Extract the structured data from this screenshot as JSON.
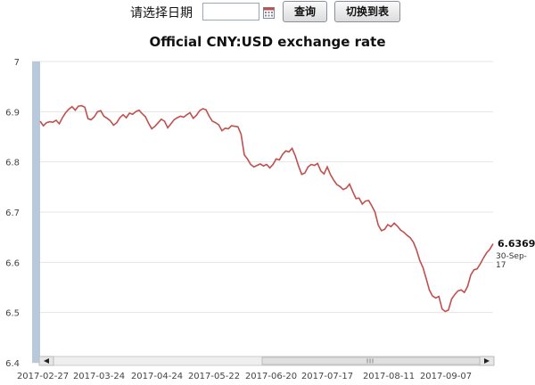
{
  "toolbar": {
    "date_label": "请选择日期",
    "date_value": "",
    "query_label": "查询",
    "switch_label": "切换到表",
    "calendar_icon": "calendar-icon"
  },
  "chart_data": {
    "type": "line",
    "title": "Official CNY:USD exchange rate",
    "xlabel": "",
    "ylabel": "",
    "ylim": [
      6.4,
      7.0
    ],
    "yticks": [
      "7",
      "6.9",
      "6.8",
      "6.7",
      "6.6",
      "6.5",
      "6.4"
    ],
    "xticks": [
      "2017-02-27",
      "2017-03-24",
      "2017-04-24",
      "2017-05-22",
      "2017-06-20",
      "2017-07-17",
      "2017-08-11",
      "2017-09-07"
    ],
    "grid": true,
    "line_color": "#c0504d",
    "series": [
      {
        "values": [
          6.881,
          6.872,
          6.878,
          6.88,
          6.879,
          6.883,
          6.876,
          6.888,
          6.898,
          6.905,
          6.91,
          6.903,
          6.911,
          6.912,
          6.909,
          6.886,
          6.884,
          6.89,
          6.9,
          6.902,
          6.891,
          6.887,
          6.882,
          6.873,
          6.878,
          6.888,
          6.894,
          6.888,
          6.897,
          6.895,
          6.9,
          6.903,
          6.896,
          6.89,
          6.877,
          6.866,
          6.871,
          6.878,
          6.885,
          6.881,
          6.868,
          6.876,
          6.884,
          6.888,
          6.891,
          6.889,
          6.894,
          6.898,
          6.887,
          6.893,
          6.902,
          6.906,
          6.904,
          6.891,
          6.881,
          6.878,
          6.874,
          6.862,
          6.867,
          6.866,
          6.872,
          6.871,
          6.87,
          6.855,
          6.814,
          6.806,
          6.795,
          6.79,
          6.793,
          6.796,
          6.792,
          6.795,
          6.788,
          6.795,
          6.806,
          6.804,
          6.815,
          6.822,
          6.82,
          6.827,
          6.812,
          6.792,
          6.775,
          6.778,
          6.79,
          6.795,
          6.793,
          6.797,
          6.782,
          6.776,
          6.79,
          6.775,
          6.764,
          6.755,
          6.751,
          6.745,
          6.748,
          6.756,
          6.741,
          6.727,
          6.728,
          6.716,
          6.722,
          6.723,
          6.712,
          6.7,
          6.674,
          6.663,
          6.666,
          6.675,
          6.671,
          6.678,
          6.672,
          6.664,
          6.66,
          6.654,
          6.649,
          6.64,
          6.625,
          6.604,
          6.59,
          6.568,
          6.545,
          6.533,
          6.529,
          6.532,
          6.507,
          6.502,
          6.505,
          6.527,
          6.536,
          6.543,
          6.545,
          6.54,
          6.552,
          6.575,
          6.585,
          6.587,
          6.597,
          6.609,
          6.619,
          6.626,
          6.6369
        ]
      }
    ],
    "last_value": "6.6369",
    "last_date": "30-Sep-17"
  },
  "colors": {
    "grid": "#e4e4e4",
    "navigator_mask": "#b8c9dc",
    "scrollbar": "#eeeeee"
  }
}
